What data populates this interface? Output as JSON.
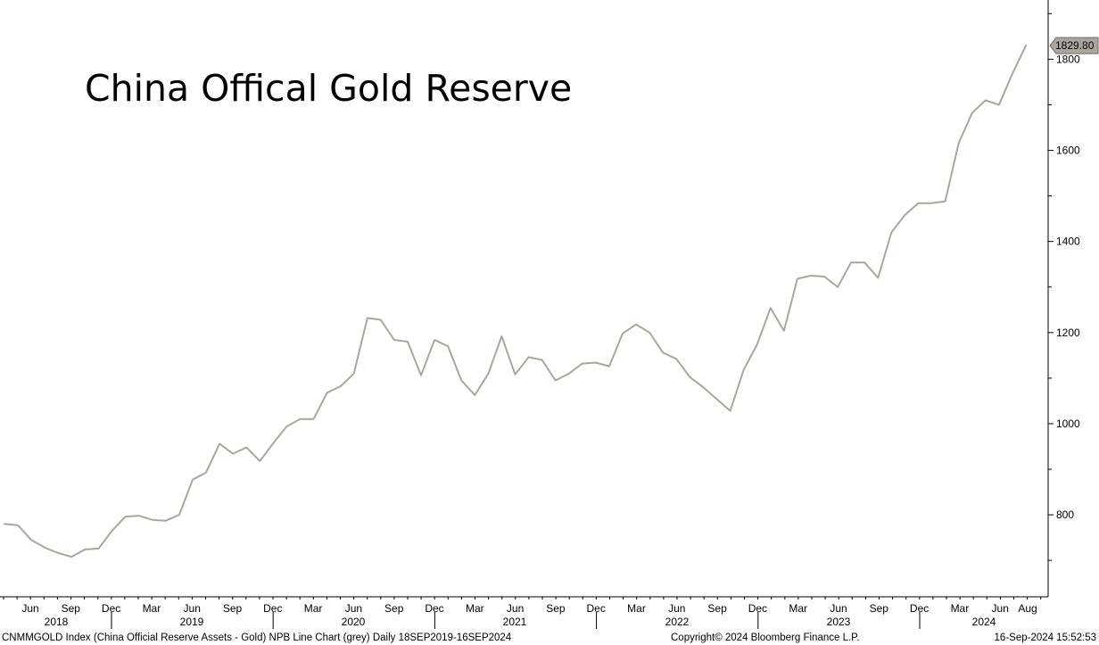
{
  "chart_data": {
    "type": "line",
    "title": "China Offical Gold Reserve",
    "line_color": "#aca59e",
    "y_axis": {
      "side": "right",
      "ticks": [
        800,
        1000,
        1200,
        1400,
        1600,
        1800
      ],
      "range": [
        620,
        1930
      ]
    },
    "x_axis": {
      "month_labels": [
        "Jun",
        "Sep",
        "Dec",
        "Mar",
        "Jun",
        "Sep",
        "Dec",
        "Mar",
        "Jun",
        "Sep",
        "Dec",
        "Mar",
        "Jun",
        "Sep",
        "Dec",
        "Mar",
        "Jun",
        "Sep",
        "Dec",
        "Mar",
        "Jun",
        "Sep",
        "Dec",
        "Mar",
        "Jun",
        "Aug"
      ],
      "year_labels": [
        "2018",
        "2019",
        "2020",
        "2021",
        "2022",
        "2023",
        "2024"
      ]
    },
    "last_value_label": "1829.80",
    "grid": false,
    "legend": "none",
    "series": [
      {
        "values": [
          780,
          777,
          745,
          728,
          716,
          708,
          724,
          726,
          765,
          796,
          798,
          789,
          787,
          800,
          877,
          893,
          956,
          934,
          948,
          918,
          957,
          994,
          1010,
          1010,
          1068,
          1082,
          1110,
          1232,
          1228,
          1184,
          1180,
          1106,
          1184,
          1170,
          1095,
          1063,
          1110,
          1192,
          1108,
          1146,
          1140,
          1095,
          1110,
          1132,
          1134,
          1126,
          1198,
          1218,
          1200,
          1156,
          1142,
          1102,
          1080,
          1054,
          1028,
          1118,
          1174,
          1254,
          1204,
          1318,
          1325,
          1323,
          1300,
          1354,
          1354,
          1320,
          1420,
          1458,
          1484,
          1484,
          1488,
          1616,
          1682,
          1710,
          1700,
          1768,
          1830
        ]
      }
    ]
  },
  "footer": {
    "left": "CNMMGOLD Index (China Official Reserve Assets - Gold) NPB Line Chart (grey)  Daily 18SEP2019-16SEP2024",
    "center": "Copyright© 2024 Bloomberg Finance L.P.",
    "right": "16-Sep-2024 15:52:53"
  }
}
